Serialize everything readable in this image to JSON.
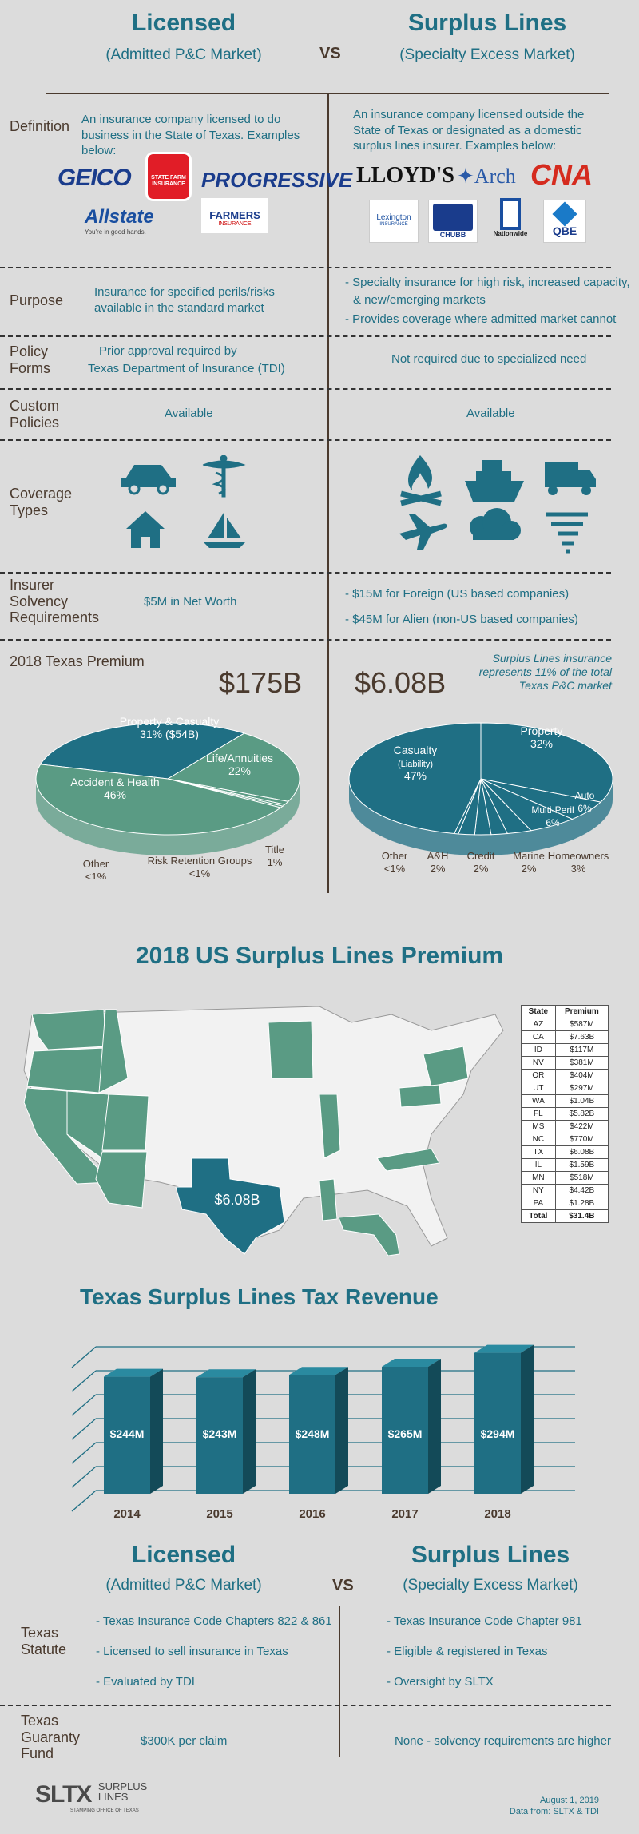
{
  "header": {
    "left_title": "Licensed",
    "left_sub": "(Admitted P&C Market)",
    "vs": "VS",
    "right_title": "Surplus Lines",
    "right_sub": "(Specialty Excess Market)"
  },
  "definition": {
    "label": "Definition",
    "left": "An insurance company licensed to do business in the State of Texas. Examples below:",
    "right": "An insurance company licensed outside the State of Texas or designated as a domestic surplus lines insurer. Examples below:",
    "left_logos": {
      "geico": "GEICO",
      "statefarm": "STATE FARM INSURANCE",
      "progressive": "PROGRESSIVE",
      "allstate": "Allstate",
      "allstate_tag": "You're in good hands.",
      "farmers": "FARMERS",
      "farmers_sub": "INSURANCE"
    },
    "right_logos": {
      "lloyds": "LLOYD'S",
      "arch": "Arch",
      "cna": "CNA",
      "lexington": "Lexington",
      "lexington_sub": "INSURANCE",
      "chubb": "CHUBB",
      "nationwide": "Nationwide",
      "qbe": "QBE"
    }
  },
  "purpose": {
    "label": "Purpose",
    "left": "Insurance for specified perils/risks available in the standard market",
    "right_1": "- Specialty insurance for high risk, increased capacity,",
    "right_2": "& new/emerging markets",
    "right_3": "- Provides coverage where admitted market cannot"
  },
  "policy_forms": {
    "label": "Policy Forms",
    "left_1": "Prior approval required by",
    "left_2": "Texas Department of Insurance (TDI)",
    "right": "Not required due to specialized need"
  },
  "custom_policies": {
    "label": "Custom Policies",
    "left": "Available",
    "right": "Available"
  },
  "coverage_types": {
    "label": "Coverage Types",
    "left_icons": [
      "car-icon",
      "caduceus-icon",
      "house-icon",
      "sailboat-icon"
    ],
    "right_icons": [
      "fire-icon",
      "ship-icon",
      "truck-icon",
      "airplane-icon",
      "storm-icon",
      "tornado-icon"
    ]
  },
  "solvency": {
    "label": "Insurer Solvency Requirements",
    "left": "$5M in Net Worth",
    "right_1": "- $15M for Foreign (US based companies)",
    "right_2": "- $45M for Alien (non-US based companies)"
  },
  "premium_2018": {
    "label": "2018 Texas Premium",
    "left_total": "$175B",
    "right_total": "$6.08B",
    "right_note": "Surplus Lines insurance represents 11% of the total Texas P&C market"
  },
  "chart_data": [
    {
      "type": "pie",
      "title": "$175B",
      "slices": [
        {
          "label": "Property & Casualty",
          "value_label": "31% ($54B)",
          "value": 31,
          "color": "#1f6f84"
        },
        {
          "label": "Life/Annuities",
          "value_label": "22%",
          "value": 22,
          "color": "#5a9b84"
        },
        {
          "label": "Title",
          "value_label": "1%",
          "value": 1,
          "color": "#5a9b84"
        },
        {
          "label": "Risk Retention Groups",
          "value_label": "<1%",
          "value": 0.5,
          "color": "#5a9b84"
        },
        {
          "label": "Other",
          "value_label": "<1%",
          "value": 0.5,
          "color": "#5a9b84"
        },
        {
          "label": "Accident & Health",
          "value_label": "46%",
          "value": 46,
          "color": "#5a9b84"
        }
      ]
    },
    {
      "type": "pie",
      "title": "$6.08B",
      "slices": [
        {
          "label": "Property",
          "value_label": "32%",
          "value": 32,
          "color": "#1f6f84"
        },
        {
          "label": "Auto",
          "value_label": "6%",
          "value": 6,
          "color": "#1f6f84"
        },
        {
          "label": "Multi-Peril",
          "value_label": "6%",
          "value": 6,
          "color": "#1f6f84"
        },
        {
          "label": "Homeowners",
          "value_label": "3%",
          "value": 3,
          "color": "#1f6f84"
        },
        {
          "label": "Marine",
          "value_label": "2%",
          "value": 2,
          "color": "#1f6f84"
        },
        {
          "label": "Credit",
          "value_label": "2%",
          "value": 2,
          "color": "#1f6f84"
        },
        {
          "label": "A&H",
          "value_label": "2%",
          "value": 2,
          "color": "#1f6f84"
        },
        {
          "label": "Other",
          "value_label": "<1%",
          "value": 0.5,
          "color": "#1f6f84"
        },
        {
          "label": "Casualty",
          "sublabel": "(Liability)",
          "value_label": "47%",
          "value": 47,
          "color": "#1f6f84"
        }
      ]
    },
    {
      "type": "bar",
      "title": "Texas Surplus Lines Tax Revenue",
      "categories": [
        "2014",
        "2015",
        "2016",
        "2017",
        "2018"
      ],
      "values": [
        244,
        243,
        248,
        265,
        294
      ],
      "value_labels": [
        "$244M",
        "$243M",
        "$248M",
        "$265M",
        "$294M"
      ],
      "ylim": [
        0,
        300
      ]
    },
    {
      "type": "table",
      "title": "2018 US Surplus Lines Premium",
      "columns": [
        "State",
        "Premium"
      ],
      "rows": [
        [
          "AZ",
          "$587M"
        ],
        [
          "CA",
          "$7.63B"
        ],
        [
          "ID",
          "$117M"
        ],
        [
          "NV",
          "$381M"
        ],
        [
          "OR",
          "$404M"
        ],
        [
          "UT",
          "$297M"
        ],
        [
          "WA",
          "$1.04B"
        ],
        [
          "FL",
          "$5.82B"
        ],
        [
          "MS",
          "$422M"
        ],
        [
          "NC",
          "$770M"
        ],
        [
          "TX",
          "$6.08B"
        ],
        [
          "IL",
          "$1.59B"
        ],
        [
          "MN",
          "$518M"
        ],
        [
          "NY",
          "$4.42B"
        ],
        [
          "PA",
          "$1.28B"
        ]
      ],
      "total": [
        "Total",
        "$31.4B"
      ],
      "map_label": "$6.08B"
    }
  ],
  "bottom": {
    "left_title": "Licensed",
    "left_sub": "(Admitted P&C Market)",
    "vs": "VS",
    "right_title": "Surplus Lines",
    "right_sub": "(Specialty Excess Market)",
    "statute_label": "Texas Statute",
    "statute_left": [
      "- Texas Insurance Code Chapters 822 & 861",
      "- Licensed to sell insurance in Texas",
      "- Evaluated by TDI"
    ],
    "statute_right": [
      "- Texas Insurance Code Chapter 981",
      "- Eligible & registered in Texas",
      "- Oversight by SLTX"
    ],
    "guaranty_label": "Texas Guaranty Fund",
    "guaranty_left": "$300K per claim",
    "guaranty_right": "None - solvency requirements are higher"
  },
  "footer": {
    "logo": "SLTX",
    "logo_text_1": "SURPLUS",
    "logo_text_2": "LINES",
    "logo_tag": "STAMPING OFFICE OF TEXAS",
    "date": "August 1, 2019",
    "source": "Data from: SLTX & TDI"
  },
  "colors": {
    "teal": "#1f6f84",
    "sage": "#5a9b84",
    "brown": "#4a3a2e",
    "bg": "#dcdcdc"
  }
}
